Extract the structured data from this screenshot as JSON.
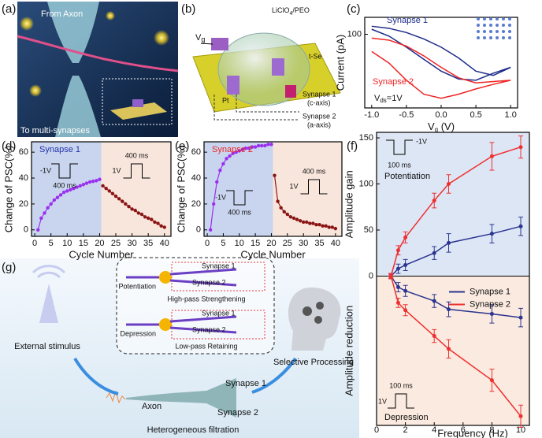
{
  "panel_labels": [
    "(a)",
    "(b)",
    "(c)",
    "(d)",
    "(e)",
    "(f)",
    "(g)"
  ],
  "panel_a": {
    "texts": [
      "From Axon",
      "To multi-synapses"
    ]
  },
  "panel_b": {
    "gate": [
      "V",
      "g"
    ],
    "electrolyte": [
      "LiClO",
      "4",
      "/PEO"
    ],
    "channel": "t-Se",
    "electrode": "Pt",
    "synapse_1": [
      "Synapse 1",
      "(c-axis)"
    ],
    "synapse_2": [
      "Synapse 2",
      "(a-axis)"
    ]
  },
  "chart_data": [
    {
      "type": "line",
      "x_label": [
        "V",
        "g",
        " (V)"
      ],
      "y_label": "Current (pA)",
      "log_y": true,
      "xlim": [
        -1.1,
        1.1
      ],
      "ylim": [
        13,
        160
      ],
      "xticks": [
        {
          "value": -1,
          "label": "-1.0"
        },
        {
          "value": -0.5,
          "label": "-0.5"
        },
        {
          "value": 0,
          "label": "0.0"
        },
        {
          "value": 0.5,
          "label": "0.5"
        },
        {
          "value": 1,
          "label": "1.0"
        }
      ],
      "yticks": [
        100
      ],
      "annotation": [
        "V",
        "ds",
        "=1V"
      ],
      "x": [
        -1,
        -0.75,
        -0.5,
        -0.25,
        0,
        0.25,
        0.5,
        0.75,
        1,
        0.75,
        0.5,
        0.25,
        0,
        -0.25,
        -0.5,
        -0.75,
        -1
      ],
      "series": [
        {
          "name": "Synapse 1",
          "color": "#1c2a8a",
          "values": [
            125,
            118,
            105,
            88,
            70,
            52,
            36,
            32,
            40,
            34,
            28,
            29,
            36,
            50,
            70,
            95,
            115
          ]
        },
        {
          "name": "Synapse 2",
          "color": "#ee2525",
          "values": [
            90,
            85,
            72,
            55,
            40,
            30,
            26,
            27,
            28,
            25,
            22,
            19,
            17,
            19,
            28,
            45,
            62
          ]
        }
      ]
    },
    {
      "type": "scatter_line",
      "x_label": "Cycle Number",
      "y_label": "Change of PSC(%)",
      "xlim": [
        -1,
        42
      ],
      "ylim": [
        -5,
        68
      ],
      "xticks": [
        0,
        5,
        10,
        15,
        20,
        25,
        30,
        35,
        40
      ],
      "yticks": [
        0,
        20,
        40,
        60
      ],
      "annotations": [
        "-1V",
        "400 ms",
        "1V",
        "400 ms"
      ],
      "shades": [
        "#c9d5ee",
        "#f8e6dc"
      ],
      "series": [
        {
          "name": "Synapse 1",
          "color": "#9a2ff0",
          "x": [
            1,
            2,
            3,
            4,
            5,
            6,
            7,
            8,
            9,
            10,
            11,
            12,
            13,
            14,
            15,
            16,
            17,
            18,
            19,
            20
          ],
          "values": [
            0,
            9,
            13,
            17,
            20,
            23,
            25,
            27,
            29,
            30,
            31,
            32,
            33,
            34,
            35,
            36,
            37,
            37.5,
            38,
            39
          ]
        },
        {
          "color": "#8b1515",
          "x": [
            21,
            22,
            23,
            24,
            25,
            26,
            27,
            28,
            29,
            30,
            31,
            32,
            33,
            34,
            35,
            36,
            37,
            38,
            39,
            40
          ],
          "values": [
            34,
            32,
            30,
            28,
            26,
            24,
            22,
            20,
            18,
            16,
            15,
            13,
            12,
            10,
            9,
            8,
            6,
            5,
            3,
            2
          ]
        }
      ]
    },
    {
      "type": "scatter_line",
      "x_label": "Cycle Number",
      "y_label": "Change of PSC(%)",
      "xlim": [
        -1,
        42
      ],
      "ylim": [
        -5,
        68
      ],
      "xticks": [
        0,
        5,
        10,
        15,
        20,
        25,
        30,
        35,
        40
      ],
      "yticks": [
        0,
        20,
        40,
        60
      ],
      "annotations": [
        "400 ms",
        "1V",
        "-1V",
        "400 ms"
      ],
      "shades": [
        "#c9d5ee",
        "#f8e6dc"
      ],
      "series": [
        {
          "name": "Synapse 2",
          "color": "#9a2ff0",
          "x": [
            1,
            2,
            3,
            4,
            5,
            6,
            7,
            8,
            9,
            10,
            11,
            12,
            13,
            14,
            15,
            16,
            17,
            18,
            19,
            20
          ],
          "values": [
            0,
            20,
            37,
            46,
            51,
            55,
            57,
            59,
            60,
            61,
            62,
            63,
            63,
            64,
            64,
            65,
            65,
            65,
            66,
            66
          ]
        },
        {
          "color": "#8b1515",
          "x": [
            21,
            22,
            23,
            24,
            25,
            26,
            27,
            28,
            29,
            30,
            31,
            32,
            33,
            34,
            35,
            36,
            37,
            38,
            39,
            40
          ],
          "values": [
            42,
            22,
            17,
            14,
            12,
            10,
            9,
            8,
            7,
            6,
            6,
            5,
            5,
            4,
            4,
            3,
            3,
            2,
            2,
            1
          ]
        }
      ]
    },
    {
      "type": "errorbar",
      "x_label": "Frequency (Hz)",
      "y_label_top": "Amplitude gain",
      "y_label_bottom": "Amplitude reduction",
      "xlim": [
        0,
        10.6
      ],
      "ylim": [
        -162,
        156
      ],
      "xticks": [
        0,
        2,
        4,
        6,
        8,
        10
      ],
      "yticks": [
        0,
        50,
        100,
        150
      ],
      "annotations": [
        "100 ms",
        "-1V",
        "Potentiation",
        "100 ms",
        "1V",
        "Depression"
      ],
      "shades": [
        "#dde6f5",
        "#fbeadf"
      ],
      "x": [
        1,
        1.5,
        2,
        4,
        5,
        8,
        10
      ],
      "series": [
        {
          "name": "Synapse 1",
          "color": "#2b3590",
          "values": [
            0,
            8,
            12,
            25,
            36,
            46,
            54
          ],
          "errors": [
            3,
            5,
            6,
            7,
            10,
            10,
            10
          ],
          "reduction": [
            0,
            -12,
            -16,
            -27,
            -36,
            -41,
            -45
          ],
          "reduction_errors": [
            2,
            5,
            6,
            7,
            8,
            10,
            10
          ]
        },
        {
          "name": "Synapse 2",
          "color": "#ee3030",
          "values": [
            0,
            28,
            42,
            82,
            100,
            130,
            140
          ],
          "errors": [
            3,
            5,
            6,
            8,
            10,
            15,
            12
          ],
          "reduction": [
            0,
            -29,
            -37,
            -65,
            -79,
            -113,
            -152
          ],
          "reduction_errors": [
            2,
            5,
            6,
            7,
            10,
            12,
            12
          ]
        }
      ]
    }
  ],
  "panel_g": {
    "stimulus": "External stimulus",
    "processing": "Selective Processing",
    "potentiation": "Potentiation",
    "high_pass": "High-pass Strengthening",
    "depression": "Depression",
    "low_pass": "Low-pass Retaining",
    "inset_synapses": [
      "Synapse 1",
      "Synapse 2",
      "Synapse 1",
      "Synapse 2"
    ],
    "axon": "Axon",
    "synapse_1": "Synapse 1",
    "synapse_2": "Synapse 2",
    "filtration": "Heterogeneous filtration"
  }
}
